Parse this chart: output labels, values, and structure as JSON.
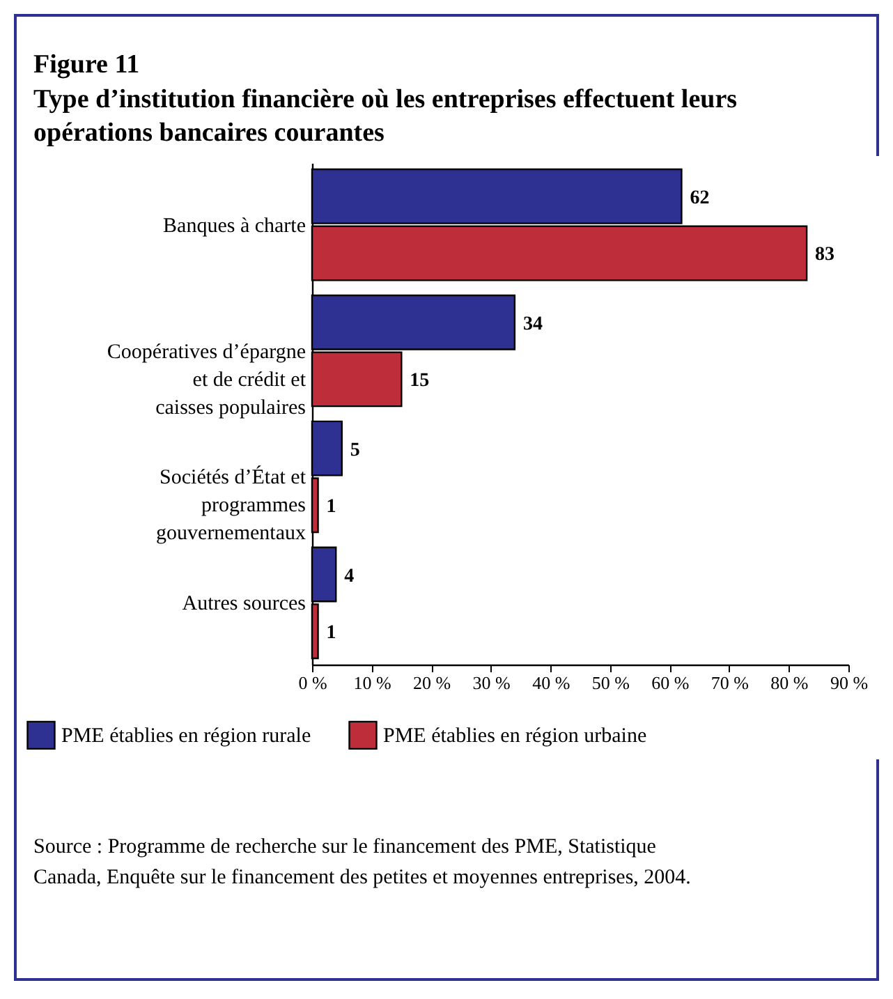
{
  "chart_data": {
    "type": "bar",
    "orientation": "horizontal",
    "title": "Figure 11",
    "subtitle": "Type d’institution financière où les entreprises effectuent leurs opérations bancaires courantes",
    "categories": [
      "Banques à charte",
      "Coopératives d’épargne\net de crédit et\ncaisses populaires",
      "Sociétés d’État et\nprogrammes\ngouvernementaux",
      "Autres sources"
    ],
    "series": [
      {
        "name": "PME établies en région rurale",
        "color": "#2e3192",
        "values": [
          62,
          34,
          5,
          4
        ]
      },
      {
        "name": "PME établies en région urbaine",
        "color": "#be2e3a",
        "values": [
          83,
          15,
          1,
          1
        ]
      }
    ],
    "xlim": [
      0,
      90
    ],
    "xticks": [
      {
        "value": 0,
        "label": "0 %"
      },
      {
        "value": 10,
        "label": "10 %"
      },
      {
        "value": 20,
        "label": "20 %"
      },
      {
        "value": 30,
        "label": "30 %"
      },
      {
        "value": 40,
        "label": "40 %"
      },
      {
        "value": 50,
        "label": "50 %"
      },
      {
        "value": 60,
        "label": "60 %"
      },
      {
        "value": 70,
        "label": "70 %"
      },
      {
        "value": 80,
        "label": "80 %"
      },
      {
        "value": 90,
        "label": "90 %"
      }
    ],
    "data_labels": true,
    "legend": "bottom",
    "grid": false,
    "annotations": [
      "Source : Programme de recherche sur le financement des PME, Statistique Canada, Enquête sur le financement des petites et moyennes entreprises, 2004."
    ]
  }
}
